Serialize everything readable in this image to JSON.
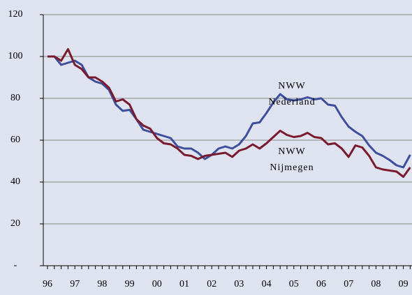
{
  "chart_data": {
    "type": "line",
    "categories": [
      "96",
      null,
      null,
      null,
      "97",
      null,
      null,
      null,
      "98",
      null,
      null,
      null,
      "99",
      null,
      null,
      null,
      "00",
      null,
      null,
      null,
      "01",
      null,
      null,
      null,
      "02",
      null,
      null,
      null,
      "03",
      null,
      null,
      null,
      "04",
      null,
      null,
      null,
      "05",
      null,
      null,
      null,
      "06",
      null,
      null,
      null,
      "07",
      null,
      null,
      null,
      "08",
      null,
      null,
      null,
      "09",
      null
    ],
    "series": [
      {
        "color": "#3d4f9c",
        "values": [
          100,
          100,
          96,
          97,
          98,
          96,
          90,
          88,
          87,
          84,
          77,
          74,
          74.5,
          70,
          65,
          64,
          63,
          62,
          61,
          57,
          56,
          56,
          54,
          51,
          53,
          56,
          57,
          56,
          58,
          62,
          68,
          68.5,
          73,
          78,
          82,
          79.5,
          79,
          79.5,
          80.5,
          79.5,
          80,
          77,
          76.5,
          71,
          66.5,
          64,
          62,
          57.5,
          54,
          52.5,
          50.5,
          48,
          47,
          53
        ]
      },
      {
        "color": "#7a1a2e",
        "values": [
          100,
          100,
          98,
          103.5,
          96,
          94,
          90,
          90,
          88,
          85,
          78.5,
          79.5,
          77,
          70,
          67,
          65.5,
          61,
          58.5,
          58,
          56,
          53,
          52.5,
          51,
          52.5,
          53,
          53.5,
          54,
          52,
          55,
          56,
          58,
          56,
          58.5,
          61.5,
          64.5,
          62.5,
          61.5,
          62,
          63.5,
          61.5,
          61,
          58,
          58.5,
          56,
          52,
          57.5,
          56.5,
          52.5,
          47,
          46,
          45.5,
          45,
          42.5,
          47
        ]
      }
    ],
    "annotations": [
      [
        "NWW",
        "Nederland"
      ],
      [
        "NWW",
        "Nijmegen"
      ]
    ],
    "ylim": [
      0,
      120
    ],
    "yticks": [
      {
        "value": 0,
        "label": "-"
      },
      20,
      40,
      60,
      80,
      100,
      120
    ],
    "grid": true
  }
}
